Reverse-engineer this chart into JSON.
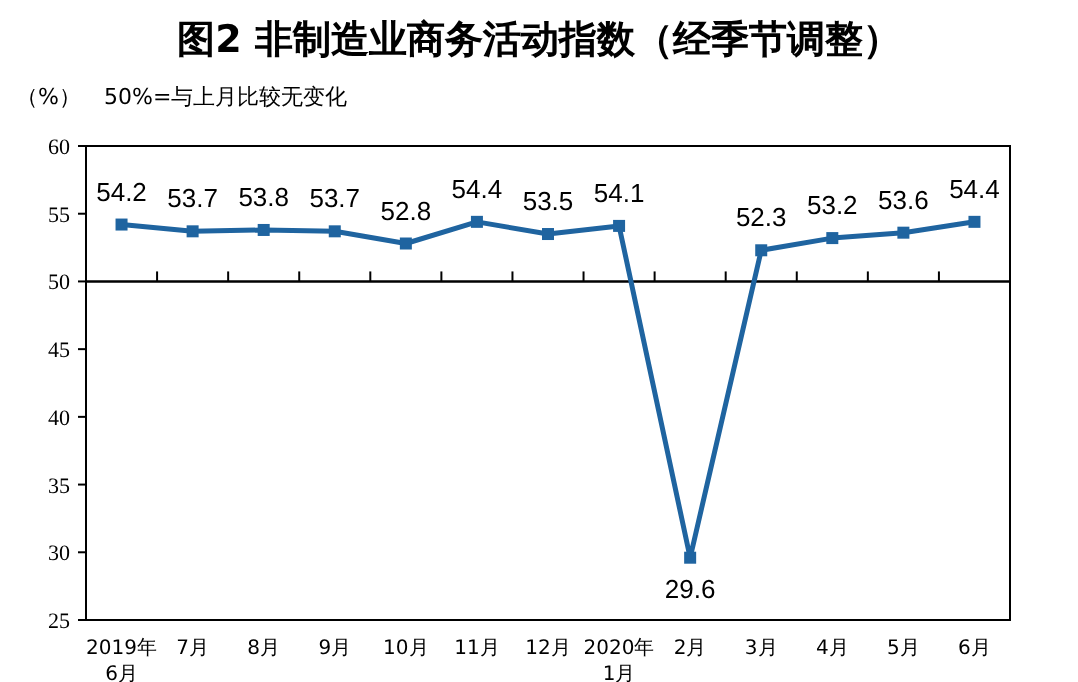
{
  "chart_data": {
    "type": "line",
    "title": "图2 非制造业商务活动指数（经季节调整）",
    "ylabel": "（%）",
    "annotations": [
      "50%=与上月比较无变化"
    ],
    "categories": [
      "2019年\n6月",
      "7月",
      "8月",
      "9月",
      "10月",
      "11月",
      "12月",
      "2020年\n1月",
      "2月",
      "3月",
      "4月",
      "5月",
      "6月"
    ],
    "series": [
      {
        "color": "#1f64a0",
        "values": [
          54.2,
          53.7,
          53.8,
          53.7,
          52.8,
          54.4,
          53.5,
          54.1,
          29.6,
          52.3,
          53.2,
          53.6,
          54.4
        ]
      }
    ],
    "ylim": [
      25,
      60
    ],
    "yticks": [
      25,
      30,
      35,
      40,
      45,
      50,
      55,
      60
    ],
    "ref_lines": [
      {
        "axis": "y",
        "value": 50,
        "color": "#000000"
      }
    ],
    "marker": "square",
    "line_style": "solid",
    "data_labels": true
  }
}
